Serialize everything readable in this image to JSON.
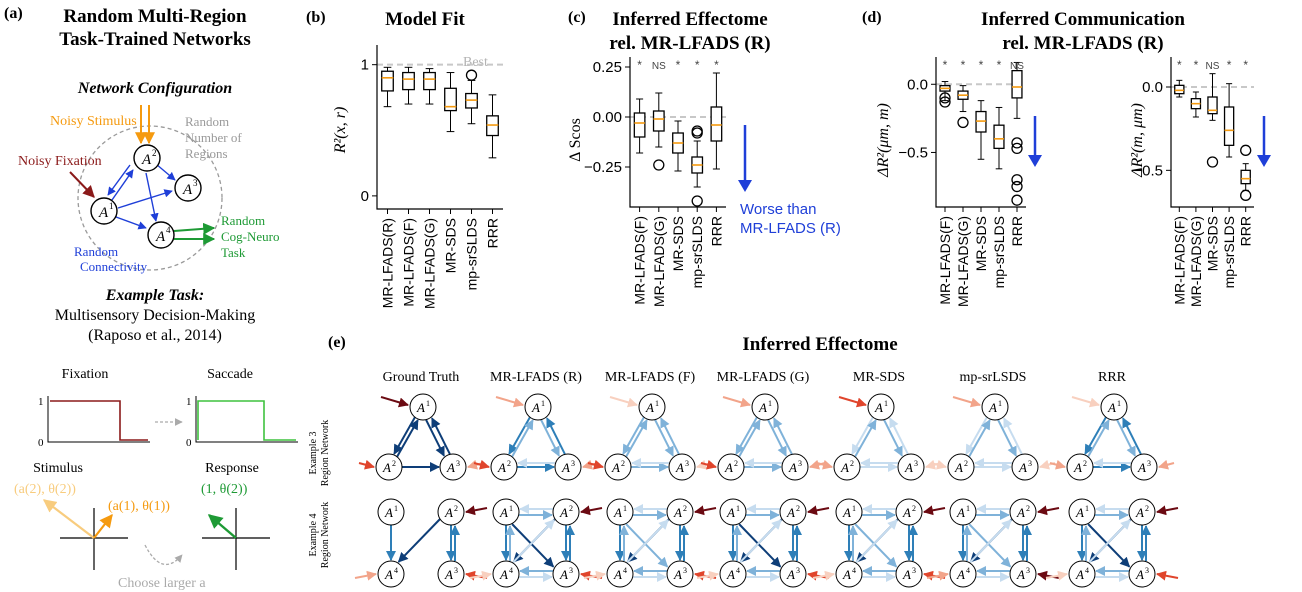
{
  "panel_a": {
    "label": "(a)",
    "title_line1": "Random Multi-Region",
    "title_line2": "Task-Trained Networks",
    "config_title": "Network Configuration",
    "noisy_stimulus": "Noisy Stimulus",
    "noisy_fixation": "Noisy Fixation",
    "random_regions_1": "Random",
    "random_regions_2": "Number of",
    "random_regions_3": "Regions",
    "random_connectivity_1": "Random",
    "random_connectivity_2": "Connectivity",
    "task_1": "Random",
    "task_2": "Cog-Neuro",
    "task_3": "Task",
    "node_a1": "A",
    "node_a1_sup": "1",
    "node_a2": "A",
    "node_a2_sup": "2",
    "node_a3": "A",
    "node_a3_sup": "3",
    "node_a4": "A",
    "node_a4_sup": "4",
    "example_title": "Example Task:",
    "example_line1": "Multisensory Decision-Making",
    "example_line2": "(Raposo et al., 2014)",
    "fixation": "Fixation",
    "saccade": "Saccade",
    "stimulus": "Stimulus",
    "response": "Response",
    "tick_1": "1",
    "tick_0": "0",
    "stim_vec2": "(a(2), θ(2))",
    "stim_vec1": "(a(1), θ(1))",
    "resp_vec": "(1, θ(2))",
    "choose": "Choose larger a",
    "colors": {
      "stimulus": "#f59a0f",
      "fixation": "#8b1a1a",
      "connectivity": "#1f3fd8",
      "task": "#1e9a35",
      "regions": "#9a9a9a"
    }
  },
  "panel_b": {
    "label": "(b)",
    "title": "Model Fit",
    "ylabel": "R²(x, r)",
    "best_label": "Best",
    "yticks": [
      "0",
      "1"
    ],
    "categories": [
      "MR-LFADS(R)",
      "MR-LFADS(F)",
      "MR-LFADS(G)",
      "MR-SDS",
      "mp-srSLDS",
      "RRR"
    ]
  },
  "panel_c": {
    "label": "(c)",
    "title_line1": "Inferred Effectome",
    "title_line2": "rel. MR-LFADS (R)",
    "ylabel": "Δ Scos",
    "yticks": [
      "0.25",
      "0.00",
      "−0.25"
    ],
    "sig": [
      "*",
      "NS",
      "*",
      "*",
      "*"
    ],
    "categories": [
      "MR-LFADS(F)",
      "MR-LFADS(G)",
      "MR-SDS",
      "mp-srSLDS",
      "RRR"
    ],
    "worse_line1": "Worse than",
    "worse_line2": "MR-LFADS (R)"
  },
  "panel_d": {
    "label": "(d)",
    "title_line1": "Inferred Communication",
    "title_line2": "rel. MR-LFADS (R)",
    "left": {
      "ylabel": "ΔR²(μm, m)",
      "yticks": [
        "0.0",
        "−0.5"
      ],
      "sig": [
        "*",
        "*",
        "*",
        "*",
        "NS"
      ],
      "categories": [
        "MR-LFADS(F)",
        "MR-LFADS(G)",
        "MR-SDS",
        "mp-srSLDS",
        "RRR"
      ]
    },
    "right": {
      "ylabel": "ΔR²(m, μm)",
      "yticks": [
        "0.0",
        "−0.5"
      ],
      "sig": [
        "*",
        "*",
        "NS",
        "*",
        "*"
      ],
      "categories": [
        "MR-LFADS(F)",
        "MR-LFADS(G)",
        "MR-SDS",
        "mp-srSLDS",
        "RRR"
      ]
    }
  },
  "panel_e": {
    "label": "(e)",
    "title": "Inferred Effectome",
    "columns": [
      "Ground Truth",
      "MR-LFADS (R)",
      "MR-LFADS (F)",
      "MR-LFADS (G)",
      "MR-SDS",
      "mp-srLSDS",
      "RRR"
    ],
    "row1_label_1": "Example 3",
    "row1_label_2": "Region Network",
    "row2_label_1": "Example 4",
    "row2_label_2": "Region Network"
  },
  "chart_data": [
    {
      "type": "box",
      "title": "Model Fit",
      "ylabel": "R²(x, r)",
      "ylim": [
        -0.1,
        1.15
      ],
      "categories": [
        "MR-LFADS(R)",
        "MR-LFADS(F)",
        "MR-LFADS(G)",
        "MR-SDS",
        "mp-srSLDS",
        "RRR"
      ],
      "boxes": [
        {
          "whislo": 0.68,
          "q1": 0.8,
          "med": 0.9,
          "q3": 0.95,
          "whishi": 0.98
        },
        {
          "whislo": 0.7,
          "q1": 0.81,
          "med": 0.89,
          "q3": 0.94,
          "whishi": 0.98
        },
        {
          "whislo": 0.7,
          "q1": 0.81,
          "med": 0.89,
          "q3": 0.94,
          "whishi": 0.97
        },
        {
          "whislo": 0.49,
          "q1": 0.65,
          "med": 0.68,
          "q3": 0.82,
          "whishi": 0.94
        },
        {
          "whislo": 0.55,
          "q1": 0.67,
          "med": 0.73,
          "q3": 0.78,
          "whishi": 0.88,
          "fliers": [
            0.92
          ]
        },
        {
          "whislo": 0.29,
          "q1": 0.46,
          "med": 0.54,
          "q3": 0.61,
          "whishi": 0.77
        }
      ],
      "best": 1.0
    },
    {
      "type": "box",
      "title": "Inferred Effectome rel. MR-LFADS (R)",
      "ylabel": "Δ Scos",
      "ylim": [
        -0.45,
        0.3
      ],
      "categories": [
        "MR-LFADS(F)",
        "MR-LFADS(G)",
        "MR-SDS",
        "mp-srSLDS",
        "RRR"
      ],
      "boxes": [
        {
          "whislo": -0.18,
          "q1": -0.1,
          "med": -0.03,
          "q3": 0.02,
          "whishi": 0.09
        },
        {
          "whislo": -0.15,
          "q1": -0.07,
          "med": -0.01,
          "q3": 0.03,
          "whishi": 0.12,
          "fliers": [
            -0.24
          ]
        },
        {
          "whislo": -0.27,
          "q1": -0.18,
          "med": -0.13,
          "q3": -0.08,
          "whishi": -0.02
        },
        {
          "whislo": -0.35,
          "q1": -0.28,
          "med": -0.24,
          "q3": -0.2,
          "whishi": -0.12,
          "fliers": [
            -0.07,
            -0.08,
            -0.42
          ]
        },
        {
          "whislo": -0.26,
          "q1": -0.12,
          "med": -0.04,
          "q3": 0.05,
          "whishi": 0.22
        }
      ]
    },
    {
      "type": "box",
      "title": "Inferred Communication rel. MR-LFADS (R)",
      "ylabel": "ΔR²(μm, m)",
      "ylim": [
        -0.9,
        0.2
      ],
      "categories": [
        "MR-LFADS(F)",
        "MR-LFADS(G)",
        "MR-SDS",
        "mp-srSLDS",
        "RRR"
      ],
      "boxes": [
        {
          "whislo": -0.12,
          "q1": -0.05,
          "med": -0.03,
          "q3": -0.01,
          "whishi": 0.02,
          "fliers": [
            -0.1,
            -0.13
          ]
        },
        {
          "whislo": -0.2,
          "q1": -0.11,
          "med": -0.08,
          "q3": -0.05,
          "whishi": -0.01,
          "fliers": [
            -0.28
          ]
        },
        {
          "whislo": -0.55,
          "q1": -0.35,
          "med": -0.27,
          "q3": -0.2,
          "whishi": -0.12
        },
        {
          "whislo": -0.62,
          "q1": -0.47,
          "med": -0.4,
          "q3": -0.3,
          "whishi": -0.17
        },
        {
          "whislo": -0.25,
          "q1": -0.1,
          "med": -0.02,
          "q3": 0.1,
          "whishi": 0.16,
          "fliers": [
            -0.43,
            -0.47,
            -0.7,
            -0.75,
            -0.85
          ]
        }
      ]
    },
    {
      "type": "box",
      "ylabel": "ΔR²(m, μm)",
      "ylim": [
        -0.72,
        0.18
      ],
      "categories": [
        "MR-LFADS(F)",
        "MR-LFADS(G)",
        "MR-SDS",
        "mp-srSLDS",
        "RRR"
      ],
      "boxes": [
        {
          "whislo": -0.06,
          "q1": -0.04,
          "med": -0.02,
          "q3": 0.01,
          "whishi": 0.04
        },
        {
          "whislo": -0.18,
          "q1": -0.13,
          "med": -0.1,
          "q3": -0.07,
          "whishi": -0.03
        },
        {
          "whislo": -0.2,
          "q1": -0.16,
          "med": -0.14,
          "q3": -0.06,
          "whishi": 0.08,
          "fliers": [
            -0.45
          ]
        },
        {
          "whislo": -0.42,
          "q1": -0.35,
          "med": -0.26,
          "q3": -0.12,
          "whishi": 0.02
        },
        {
          "whislo": -0.62,
          "q1": -0.58,
          "med": -0.55,
          "q3": -0.5,
          "whishi": -0.46,
          "fliers": [
            -0.38,
            -0.65
          ]
        }
      ]
    }
  ]
}
